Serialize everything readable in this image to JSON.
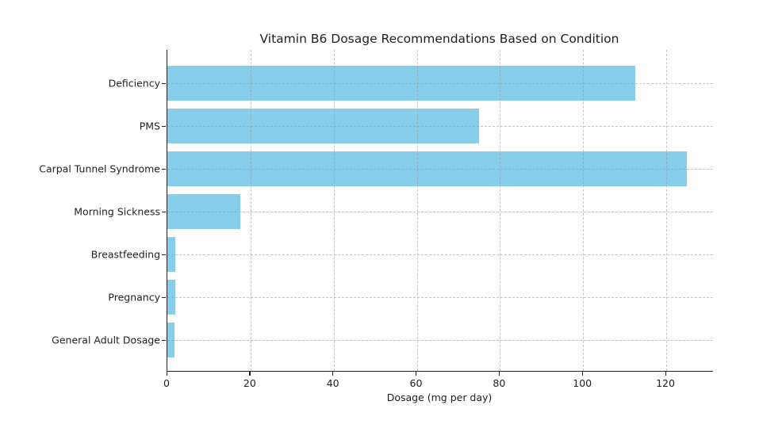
{
  "chart_data": {
    "type": "bar",
    "orientation": "horizontal",
    "title": "Vitamin B6 Dosage Recommendations Based on Condition",
    "xlabel": "Dosage (mg per day)",
    "ylabel": "",
    "categories": [
      "Deficiency",
      "PMS",
      "Carpal Tunnel Syndrome",
      "Morning Sickness",
      "Breastfeeding",
      "Pregnancy",
      "General Adult Dosage"
    ],
    "values": [
      112.5,
      75,
      125,
      17.5,
      2.0,
      1.9,
      1.7
    ],
    "xticks": [
      0,
      20,
      40,
      60,
      80,
      100,
      120
    ],
    "xlim": [
      0,
      131.25
    ],
    "grid": true,
    "grid_style": "dashed",
    "legend": "none",
    "bar_color": "#87CEEB",
    "axis_color": "#222222",
    "text_color": "#1f1f1f",
    "background_color": "#ffffff"
  }
}
